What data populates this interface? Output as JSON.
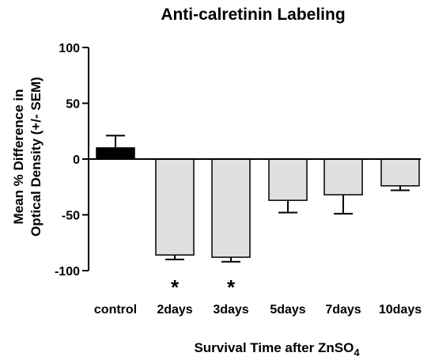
{
  "chart_data": {
    "type": "bar",
    "title": "Anti-calretinin Labeling",
    "ylabel_line1": "Mean % Difference in",
    "ylabel_line2": "Optical Density (+/- SEM)",
    "xlabel_main": "Survival Time after ZnSO",
    "xlabel_sub": "4",
    "categories": [
      "control",
      "2days",
      "3days",
      "5days",
      "7days",
      "10days"
    ],
    "values": [
      10,
      -86,
      -88,
      -37,
      -32,
      -24
    ],
    "errors": [
      11,
      4,
      4,
      11,
      17,
      4
    ],
    "significant": [
      "",
      "*",
      "*",
      "",
      "",
      ""
    ],
    "bar_colors": [
      "#000000",
      "#e0e0e0",
      "#e0e0e0",
      "#e0e0e0",
      "#e0e0e0",
      "#e0e0e0"
    ],
    "ylim": [
      -100,
      100
    ],
    "yticks": [
      100,
      50,
      0,
      -50,
      -100
    ],
    "grid": false,
    "legend": "none"
  }
}
